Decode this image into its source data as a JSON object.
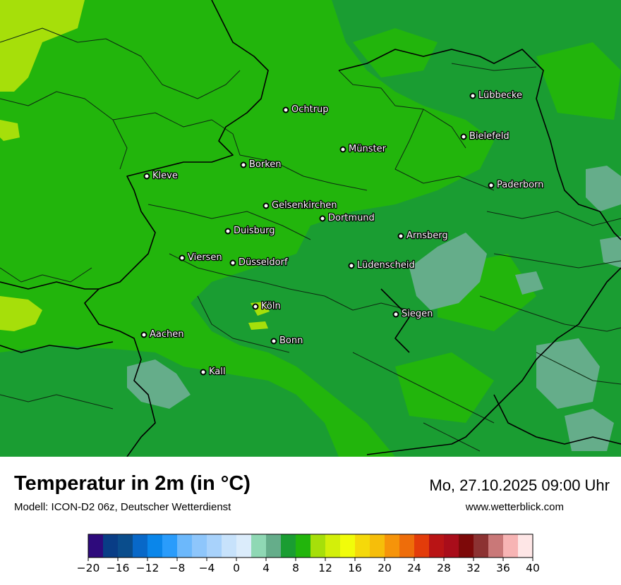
{
  "title": "Temperatur in 2m (in °C)",
  "model_info": "Modell: ICON-D2 06z, Deutscher Wetterdienst",
  "datetime": "Mo, 27.10.2025 09:00 Uhr",
  "website": "www.wetterblick.com",
  "cities": [
    {
      "name": "Lübbecke"
    },
    {
      "name": "Ochtrup"
    },
    {
      "name": "Bielefeld"
    },
    {
      "name": "Münster"
    },
    {
      "name": "Borken"
    },
    {
      "name": "Kleve"
    },
    {
      "name": "Paderborn"
    },
    {
      "name": "Gelsenkirchen"
    },
    {
      "name": "Dortmund"
    },
    {
      "name": "Duisburg"
    },
    {
      "name": "Arnsberg"
    },
    {
      "name": "Viersen"
    },
    {
      "name": "Düsseldorf"
    },
    {
      "name": "Lüdenscheid"
    },
    {
      "name": "Köln"
    },
    {
      "name": "Siegen"
    },
    {
      "name": "Aachen"
    },
    {
      "name": "Bonn"
    },
    {
      "name": "Kall"
    }
  ],
  "colorscale": {
    "ticks": [
      "−20",
      "−16",
      "−12",
      "−8",
      "−4",
      "0",
      "4",
      "8",
      "12",
      "16",
      "20",
      "24",
      "28",
      "32",
      "36",
      "40"
    ],
    "colors": [
      "#2e0a7c",
      "#093d86",
      "#0a4d8c",
      "#0868c8",
      "#0a86ea",
      "#2a9cfb",
      "#6cb8fb",
      "#8ec6fb",
      "#a8d2fb",
      "#c7e2fb",
      "#dbecfb",
      "#8fd8b4",
      "#65ad8a",
      "#1a9d32",
      "#22b50c",
      "#a6df0a",
      "#d3ef0a",
      "#f1fc0a",
      "#f5d90a",
      "#f6be0a",
      "#f6940a",
      "#ee6d0a",
      "#e33c0a",
      "#b91415",
      "#a90d1a",
      "#7d0909",
      "#8c3232",
      "#c97878",
      "#f7b4b4",
      "#fee6e6"
    ]
  }
}
